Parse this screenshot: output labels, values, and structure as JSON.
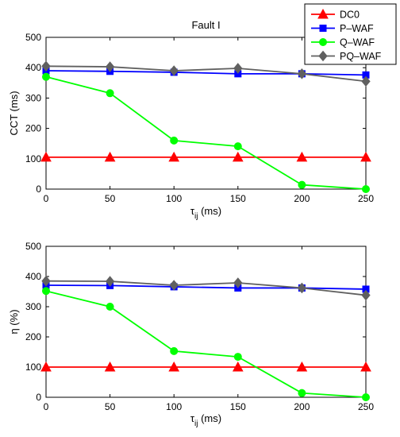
{
  "chart_data": [
    {
      "type": "line",
      "title": "Fault I",
      "xlabel": "τij (ms)",
      "ylabel": "CCT (ms)",
      "xlim": [
        0,
        250
      ],
      "ylim": [
        0,
        500
      ],
      "xticks": [
        0,
        50,
        100,
        150,
        200,
        250
      ],
      "yticks": [
        0,
        100,
        200,
        300,
        400,
        500
      ],
      "grid": false,
      "x": [
        0,
        50,
        100,
        150,
        200,
        250
      ],
      "series": [
        {
          "name": "DC0",
          "color": "#ff0000",
          "marker": "triangle",
          "values": [
            105,
            105,
            105,
            105,
            105,
            105
          ]
        },
        {
          "name": "P–WAF",
          "color": "#0000ff",
          "marker": "square",
          "values": [
            390,
            388,
            385,
            380,
            380,
            376
          ]
        },
        {
          "name": "Q–WAF",
          "color": "#00ff00",
          "marker": "circle",
          "values": [
            370,
            316,
            160,
            141,
            14,
            0
          ]
        },
        {
          "name": "PQ–WAF",
          "color": "#606060",
          "marker": "diamond",
          "values": [
            405,
            403,
            390,
            398,
            380,
            355
          ]
        }
      ],
      "legend": "top-right, outside"
    },
    {
      "type": "line",
      "title": "",
      "xlabel": "τij (ms)",
      "ylabel": "η (%)",
      "xlim": [
        0,
        250
      ],
      "ylim": [
        0,
        500
      ],
      "xticks": [
        0,
        50,
        100,
        150,
        200,
        250
      ],
      "yticks": [
        0,
        100,
        200,
        300,
        400,
        500
      ],
      "grid": false,
      "x": [
        0,
        50,
        100,
        150,
        200,
        250
      ],
      "series": [
        {
          "name": "DC0",
          "color": "#ff0000",
          "marker": "triangle",
          "values": [
            100,
            100,
            100,
            100,
            100,
            100
          ]
        },
        {
          "name": "P–WAF",
          "color": "#0000ff",
          "marker": "square",
          "values": [
            371,
            370,
            366,
            362,
            362,
            358
          ]
        },
        {
          "name": "Q–WAF",
          "color": "#00ff00",
          "marker": "circle",
          "values": [
            352,
            300,
            153,
            134,
            14,
            0
          ]
        },
        {
          "name": "PQ–WAF",
          "color": "#606060",
          "marker": "diamond",
          "values": [
            385,
            384,
            371,
            379,
            362,
            338
          ]
        }
      ]
    }
  ]
}
